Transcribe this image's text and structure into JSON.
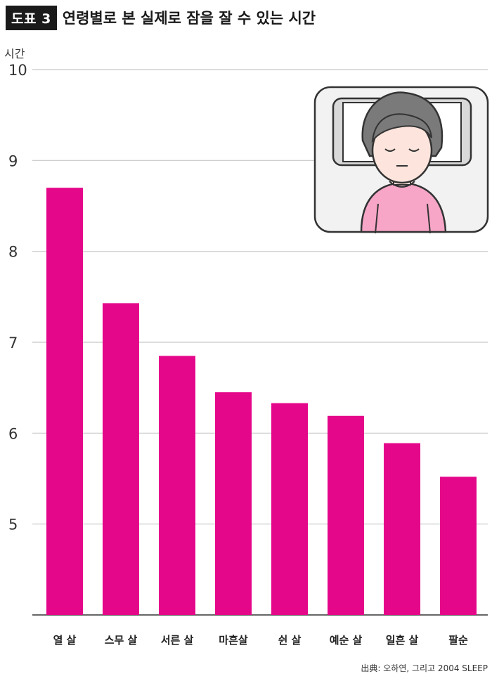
{
  "header": {
    "badge": "도표 3",
    "title": "연령별로 본 실제로 잠을 잘 수 있는 시간"
  },
  "colors": {
    "bar": "#e5078a",
    "grid": "#c8c8c8",
    "axis": "#333333"
  },
  "chart_data": {
    "type": "bar",
    "ylabel": "시간",
    "ylim": [
      4,
      10
    ],
    "yticks": [
      5,
      6,
      7,
      8,
      9,
      10
    ],
    "categories": [
      "열 살",
      "스무 살",
      "서른 살",
      "마흔살",
      "쉰 살",
      "예순 살",
      "일흔 살",
      "팔순"
    ],
    "values": [
      8.7,
      7.43,
      6.85,
      6.45,
      6.33,
      6.19,
      5.89,
      5.52
    ]
  },
  "illustration": {
    "icon": "sleeping-person-illustration"
  },
  "source": "出典: 오하연, 그리고 2004 SLEEP"
}
